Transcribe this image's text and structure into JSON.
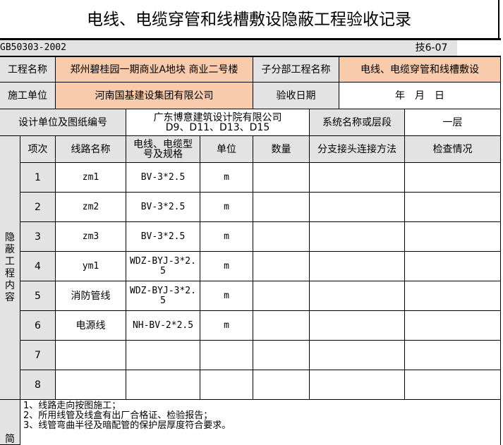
{
  "title": "电线、电缆穿管和线槽敷设隐蔽工程验收记录",
  "standard": "GB50303-2002",
  "form_no": "技6-07",
  "project_name_label": "工程名称",
  "project_name": "郑州碧桂园一期商业A地块 商业二号楼",
  "subproject_label": "子分部工程名称",
  "subproject": "电线、电缆穿管和线槽敷设",
  "contractor_label": "施工单位",
  "contractor": "河南国基建设集团有限公司",
  "date_label": "验收日期",
  "date": "年　月　日",
  "design_label": "设计单位及图纸编号",
  "design": "广东博意建筑设计院有限公司 D9、D11、D13、D15",
  "system_label": "系统名称或层段",
  "system": "一层",
  "side_label": "隐蔽工程内容",
  "headers": [
    "项次",
    "线路名称",
    "电线、电缆型号及规格",
    "单位",
    "数量",
    "分支接头连接方法",
    "检查情况"
  ],
  "rows": [
    {
      "no": "1",
      "name": "zm1",
      "spec": "BV-3*2.5",
      "unit": "m",
      "qty": "",
      "method": "",
      "check": ""
    },
    {
      "no": "2",
      "name": "zm2",
      "spec": "BV-3*2.5",
      "unit": "m",
      "qty": "",
      "method": "",
      "check": ""
    },
    {
      "no": "3",
      "name": "zm3",
      "spec": "BV-3*2.5",
      "unit": "m",
      "qty": "",
      "method": "",
      "check": ""
    },
    {
      "no": "4",
      "name": "ym1",
      "spec": "WDZ-BYJ-3*2.5",
      "unit": "m",
      "qty": "",
      "method": "",
      "check": ""
    },
    {
      "no": "5",
      "name": "消防管线",
      "spec": "WDZ-BYJ-3*2.5",
      "unit": "m",
      "qty": "",
      "method": "",
      "check": ""
    },
    {
      "no": "6",
      "name": "电源线",
      "spec": "NH-BV-2*2.5",
      "unit": "m",
      "qty": "",
      "method": "",
      "check": ""
    },
    {
      "no": "7",
      "name": "",
      "spec": "",
      "unit": "",
      "qty": "",
      "method": "",
      "check": ""
    },
    {
      "no": "8",
      "name": "",
      "spec": "",
      "unit": "",
      "qty": "",
      "method": "",
      "check": ""
    }
  ],
  "notes": [
    "1、线路走向按图施工；",
    "2、所用线管及线盒有出厂合格证、检验报告；",
    "3、线管弯曲半径及暗配管的保护层厚度符合要求。"
  ],
  "notes_side_label": "简"
}
